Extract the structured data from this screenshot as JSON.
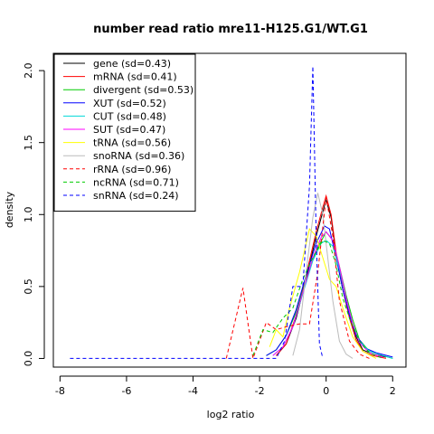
{
  "chart_data": {
    "type": "line",
    "title": "number read ratio mre11-H125.G1/WT.G1",
    "xlabel": "log2 ratio",
    "ylabel": "density",
    "xlim": [
      -8.2,
      2.4
    ],
    "ylim": [
      -0.06,
      2.12
    ],
    "xticks": [
      -8,
      -6,
      -4,
      -2,
      0,
      2
    ],
    "yticks": [
      0.0,
      0.5,
      1.0,
      1.5,
      2.0
    ],
    "xtick_labels": [
      "-8",
      "-6",
      "-4",
      "-2",
      "0",
      "2"
    ],
    "ytick_labels": [
      "0.0",
      "0.5",
      "1.0",
      "1.5",
      "2.0"
    ],
    "grid": false,
    "legend_position": "top-left",
    "series": [
      {
        "name": "gene (sd=0.43)",
        "color": "#000000",
        "dash": "solid",
        "points": [
          [
            -1.5,
            0.02
          ],
          [
            -1.2,
            0.1
          ],
          [
            -0.9,
            0.28
          ],
          [
            -0.6,
            0.55
          ],
          [
            -0.3,
            0.85
          ],
          [
            -0.1,
            1.02
          ],
          [
            0.0,
            1.1
          ],
          [
            0.15,
            0.98
          ],
          [
            0.3,
            0.72
          ],
          [
            0.5,
            0.48
          ],
          [
            0.7,
            0.3
          ],
          [
            0.9,
            0.15
          ],
          [
            1.1,
            0.06
          ],
          [
            1.4,
            0.03
          ],
          [
            1.8,
            0.01
          ]
        ]
      },
      {
        "name": "mRNA (sd=0.41)",
        "color": "#ff0000",
        "dash": "solid",
        "points": [
          [
            -1.5,
            0.02
          ],
          [
            -1.2,
            0.1
          ],
          [
            -0.9,
            0.3
          ],
          [
            -0.6,
            0.58
          ],
          [
            -0.3,
            0.88
          ],
          [
            -0.1,
            1.05
          ],
          [
            0.0,
            1.13
          ],
          [
            0.15,
            1.0
          ],
          [
            0.3,
            0.74
          ],
          [
            0.5,
            0.48
          ],
          [
            0.7,
            0.28
          ],
          [
            0.9,
            0.13
          ],
          [
            1.1,
            0.05
          ],
          [
            1.4,
            0.02
          ],
          [
            1.8,
            0.0
          ]
        ]
      },
      {
        "name": "divergent (sd=0.53)",
        "color": "#00cc00",
        "dash": "solid",
        "points": [
          [
            -1.8,
            0.02
          ],
          [
            -1.5,
            0.06
          ],
          [
            -1.2,
            0.16
          ],
          [
            -0.9,
            0.32
          ],
          [
            -0.6,
            0.55
          ],
          [
            -0.3,
            0.75
          ],
          [
            0.0,
            0.88
          ],
          [
            0.2,
            0.82
          ],
          [
            0.4,
            0.64
          ],
          [
            0.6,
            0.44
          ],
          [
            0.8,
            0.27
          ],
          [
            1.0,
            0.13
          ],
          [
            1.3,
            0.05
          ],
          [
            1.7,
            0.02
          ],
          [
            2.0,
            0.0
          ]
        ]
      },
      {
        "name": "XUT (sd=0.52)",
        "color": "#0000ff",
        "dash": "solid",
        "points": [
          [
            -1.8,
            0.02
          ],
          [
            -1.5,
            0.06
          ],
          [
            -1.2,
            0.16
          ],
          [
            -0.9,
            0.34
          ],
          [
            -0.6,
            0.58
          ],
          [
            -0.3,
            0.8
          ],
          [
            -0.05,
            0.92
          ],
          [
            0.1,
            0.9
          ],
          [
            0.3,
            0.7
          ],
          [
            0.5,
            0.48
          ],
          [
            0.7,
            0.3
          ],
          [
            0.9,
            0.16
          ],
          [
            1.2,
            0.07
          ],
          [
            1.5,
            0.04
          ],
          [
            2.0,
            0.01
          ]
        ]
      },
      {
        "name": "CUT (sd=0.48)",
        "color": "#00d8d8",
        "dash": "solid",
        "points": [
          [
            -1.6,
            0.02
          ],
          [
            -1.3,
            0.08
          ],
          [
            -1.0,
            0.22
          ],
          [
            -0.7,
            0.45
          ],
          [
            -0.4,
            0.68
          ],
          [
            -0.15,
            0.8
          ],
          [
            0.0,
            0.82
          ],
          [
            0.2,
            0.78
          ],
          [
            0.4,
            0.62
          ],
          [
            0.6,
            0.42
          ],
          [
            0.8,
            0.24
          ],
          [
            1.0,
            0.12
          ],
          [
            1.3,
            0.05
          ],
          [
            1.7,
            0.02
          ],
          [
            2.0,
            0.0
          ]
        ]
      },
      {
        "name": "SUT (sd=0.47)",
        "color": "#ff00ff",
        "dash": "solid",
        "points": [
          [
            -1.6,
            0.02
          ],
          [
            -1.3,
            0.08
          ],
          [
            -1.0,
            0.22
          ],
          [
            -0.7,
            0.46
          ],
          [
            -0.4,
            0.7
          ],
          [
            -0.15,
            0.84
          ],
          [
            0.0,
            0.88
          ],
          [
            0.2,
            0.82
          ],
          [
            0.4,
            0.64
          ],
          [
            0.6,
            0.42
          ],
          [
            0.8,
            0.24
          ],
          [
            1.0,
            0.11
          ],
          [
            1.3,
            0.04
          ],
          [
            1.7,
            0.01
          ]
        ]
      },
      {
        "name": "tRNA (sd=0.56)",
        "color": "#ffff00",
        "dash": "solid",
        "points": [
          [
            -1.7,
            0.08
          ],
          [
            -1.5,
            0.2
          ],
          [
            -1.3,
            0.15
          ],
          [
            -1.1,
            0.35
          ],
          [
            -0.8,
            0.6
          ],
          [
            -0.5,
            0.9
          ],
          [
            -0.3,
            0.85
          ],
          [
            -0.1,
            0.7
          ],
          [
            0.1,
            0.55
          ],
          [
            0.3,
            0.5
          ],
          [
            0.5,
            0.35
          ],
          [
            0.8,
            0.15
          ],
          [
            1.1,
            0.05
          ],
          [
            1.5,
            0.0
          ]
        ]
      },
      {
        "name": "snoRNA (sd=0.36)",
        "color": "#bbbbbb",
        "dash": "solid",
        "points": [
          [
            -1.0,
            0.02
          ],
          [
            -0.8,
            0.2
          ],
          [
            -0.6,
            0.6
          ],
          [
            -0.4,
            0.98
          ],
          [
            -0.25,
            1.15
          ],
          [
            -0.1,
            1.0
          ],
          [
            0.05,
            0.7
          ],
          [
            0.2,
            0.4
          ],
          [
            0.4,
            0.12
          ],
          [
            0.6,
            0.03
          ],
          [
            0.8,
            0.0
          ]
        ]
      },
      {
        "name": "rRNA (sd=0.96)",
        "color": "#ff0000",
        "dash": "dashed",
        "points": [
          [
            -3.0,
            0.0
          ],
          [
            -2.5,
            0.49
          ],
          [
            -2.2,
            0.0
          ],
          [
            -1.8,
            0.25
          ],
          [
            -1.5,
            0.2
          ],
          [
            -1.2,
            0.22
          ],
          [
            -0.8,
            0.24
          ],
          [
            -0.5,
            0.24
          ],
          [
            -0.25,
            0.6
          ],
          [
            0.0,
            1.12
          ],
          [
            0.2,
            0.85
          ],
          [
            0.4,
            0.4
          ],
          [
            0.7,
            0.12
          ],
          [
            1.0,
            0.03
          ],
          [
            1.3,
            0.0
          ]
        ]
      },
      {
        "name": "ncRNA (sd=0.71)",
        "color": "#00cc00",
        "dash": "dashed",
        "points": [
          [
            -2.2,
            0.02
          ],
          [
            -1.9,
            0.2
          ],
          [
            -1.6,
            0.18
          ],
          [
            -1.3,
            0.28
          ],
          [
            -1.0,
            0.35
          ],
          [
            -0.7,
            0.55
          ],
          [
            -0.4,
            0.7
          ],
          [
            -0.1,
            0.82
          ],
          [
            0.1,
            0.8
          ],
          [
            0.3,
            0.65
          ],
          [
            0.5,
            0.42
          ],
          [
            0.7,
            0.28
          ],
          [
            1.0,
            0.12
          ],
          [
            1.3,
            0.04
          ],
          [
            1.7,
            0.0
          ]
        ]
      },
      {
        "name": "snRNA (sd=0.24)",
        "color": "#0000ff",
        "dash": "dashed",
        "points": [
          [
            -7.7,
            0.0
          ],
          [
            -1.5,
            0.0
          ],
          [
            -1.25,
            0.12
          ],
          [
            -1.0,
            0.5
          ],
          [
            -0.7,
            0.5
          ],
          [
            -0.5,
            1.2
          ],
          [
            -0.4,
            2.03
          ],
          [
            -0.3,
            0.85
          ],
          [
            -0.2,
            0.1
          ],
          [
            -0.1,
            0.0
          ]
        ]
      }
    ]
  }
}
